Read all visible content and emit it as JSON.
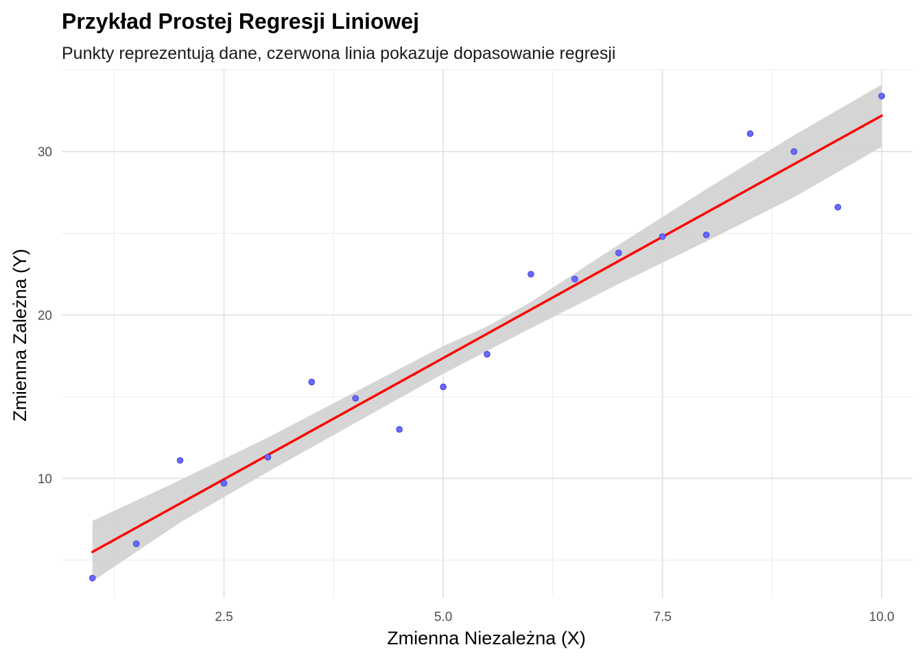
{
  "chart_data": {
    "type": "scatter",
    "title": "Przykład Prostej Regresji Liniowej",
    "subtitle": "Punkty reprezentują dane, czerwona linia pokazuje dopasowanie regresji",
    "xlabel": "Zmienna Niezależna (X)",
    "ylabel": "Zmienna Zależna (Y)",
    "xlim": [
      0.65,
      10.35
    ],
    "ylim": [
      2.7,
      35.0
    ],
    "x_ticks": [
      2.5,
      5.0,
      7.5,
      10.0
    ],
    "x_tick_labels": [
      "2.5",
      "5.0",
      "7.5",
      "10.0"
    ],
    "y_ticks": [
      10,
      20,
      30
    ],
    "y_tick_labels": [
      "10",
      "20",
      "30"
    ],
    "x_minor": [
      1.25,
      3.75,
      6.25,
      8.75
    ],
    "y_minor": [
      5,
      15,
      25,
      35
    ],
    "grid": true,
    "legend": "none",
    "points": {
      "color": "#6a6aff",
      "stroke": "#3b3bd6",
      "x": [
        1.0,
        1.5,
        2.0,
        2.5,
        3.0,
        3.5,
        4.0,
        4.5,
        5.0,
        5.5,
        6.0,
        6.5,
        7.0,
        7.5,
        8.0,
        8.5,
        9.0,
        9.5,
        10.0
      ],
      "y": [
        3.9,
        6.0,
        11.1,
        9.7,
        11.3,
        15.9,
        14.9,
        13.0,
        15.6,
        17.6,
        22.5,
        22.2,
        23.8,
        24.8,
        24.9,
        31.1,
        30.0,
        26.6,
        33.4
      ]
    },
    "regression": {
      "color": "#ff0000",
      "x_start": 1.0,
      "y_start": 5.5,
      "x_end": 10.0,
      "y_end": 32.2
    },
    "confidence_band": {
      "color": "#d3d3d3",
      "x": [
        1.0,
        2.0,
        3.0,
        4.0,
        5.0,
        5.5,
        6.0,
        7.0,
        8.0,
        9.0,
        10.0
      ],
      "lower": [
        3.7,
        7.3,
        10.4,
        13.4,
        16.4,
        17.8,
        19.2,
        21.9,
        24.5,
        27.2,
        30.3
      ],
      "upper": [
        7.4,
        9.9,
        12.5,
        15.3,
        18.1,
        19.3,
        20.8,
        24.3,
        27.7,
        31.0,
        34.1
      ]
    }
  }
}
